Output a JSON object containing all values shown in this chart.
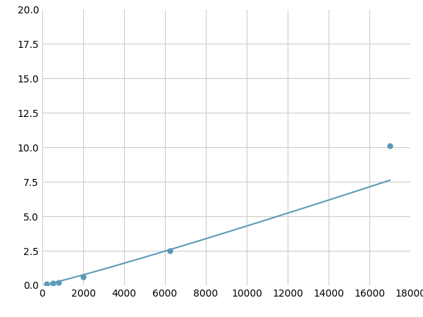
{
  "x": [
    200,
    500,
    800,
    2000,
    6250,
    17000
  ],
  "y": [
    0.1,
    0.15,
    0.2,
    0.6,
    2.5,
    10.1
  ],
  "line_color": "#5b9ab8",
  "marker_color": "#5b9ab8",
  "marker_size": 6,
  "xlim": [
    0,
    18000
  ],
  "ylim": [
    0,
    20.0
  ],
  "xticks": [
    0,
    2000,
    4000,
    6000,
    8000,
    10000,
    12000,
    14000,
    16000,
    18000
  ],
  "yticks": [
    0.0,
    2.5,
    5.0,
    7.5,
    10.0,
    12.5,
    15.0,
    17.5,
    20.0
  ],
  "grid_color": "#cccccc",
  "background_color": "#ffffff",
  "tick_fontsize": 10,
  "visible_marker_idx": [
    0,
    1,
    2,
    3,
    4,
    5
  ]
}
